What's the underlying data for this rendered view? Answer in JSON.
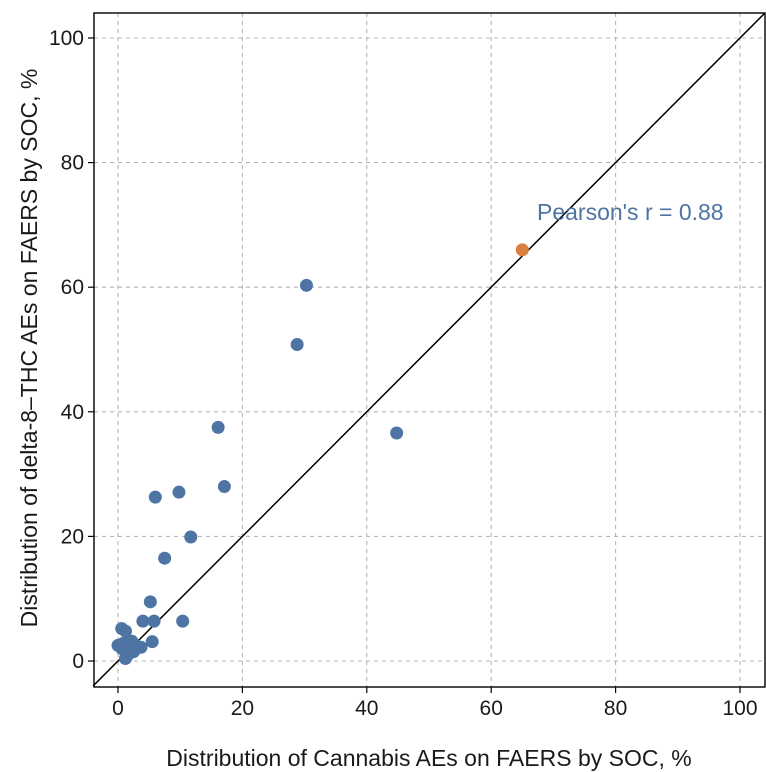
{
  "chart_data": {
    "type": "scatter",
    "title": "",
    "xlabel": "Distribution of Cannabis AEs on FAERS by SOC, %",
    "ylabel": "Distribution of delta-8–THC AEs on FAERS by SOC, %",
    "xlim": [
      -4,
      104
    ],
    "ylim": [
      -4,
      104
    ],
    "xticks": [
      0,
      20,
      40,
      60,
      80,
      100
    ],
    "yticks": [
      0,
      20,
      40,
      60,
      80,
      100
    ],
    "grid": true,
    "grid_style": "dashed",
    "reference_line": {
      "type": "identity",
      "slope": 1,
      "intercept": 0,
      "color": "#000000"
    },
    "annotation": {
      "text": "Pearson's r = 0.88",
      "color": "#4e74a3"
    },
    "colors": {
      "primary": "#4e74a3",
      "highlight": "#d97f3f"
    },
    "series": [
      {
        "color": "#4e74a3",
        "points": [
          {
            "x": 30.3,
            "y": 60.3
          },
          {
            "x": 28.8,
            "y": 50.8
          },
          {
            "x": 44.8,
            "y": 36.6
          },
          {
            "x": 16.1,
            "y": 37.5
          },
          {
            "x": 9.8,
            "y": 27.1
          },
          {
            "x": 17.1,
            "y": 28.0
          },
          {
            "x": 6.0,
            "y": 26.3
          },
          {
            "x": 11.7,
            "y": 19.9
          },
          {
            "x": 7.5,
            "y": 16.5
          },
          {
            "x": 5.2,
            "y": 9.5
          },
          {
            "x": 10.4,
            "y": 6.4
          },
          {
            "x": 4.0,
            "y": 6.4
          },
          {
            "x": 5.8,
            "y": 6.4
          },
          {
            "x": 0.6,
            "y": 5.2
          },
          {
            "x": 1.2,
            "y": 4.8
          },
          {
            "x": 5.5,
            "y": 3.1
          },
          {
            "x": 0.0,
            "y": 2.5
          },
          {
            "x": 0.8,
            "y": 2.8
          },
          {
            "x": 1.5,
            "y": 3.0
          },
          {
            "x": 2.2,
            "y": 3.2
          },
          {
            "x": 2.8,
            "y": 2.5
          },
          {
            "x": 3.7,
            "y": 2.2
          },
          {
            "x": 1.8,
            "y": 1.8
          },
          {
            "x": 2.5,
            "y": 1.5
          },
          {
            "x": 0.6,
            "y": 2.0
          },
          {
            "x": 1.2,
            "y": 0.4
          },
          {
            "x": 1.6,
            "y": 1.0
          }
        ]
      },
      {
        "color": "#d97f3f",
        "points": [
          {
            "x": 65.0,
            "y": 66.0
          }
        ]
      }
    ]
  }
}
